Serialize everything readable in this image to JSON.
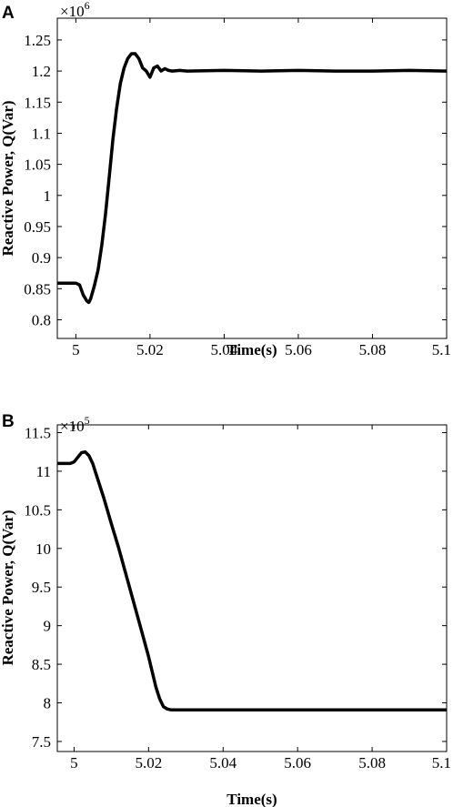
{
  "chart_data": [
    {
      "panel": "A",
      "type": "line",
      "xlabel": "Time(s)",
      "ylabel": "Reactive Power, Q(Var)",
      "multiplier": "×10",
      "multiplier_exp": "6",
      "xlim": [
        4.995,
        5.1
      ],
      "ylim": [
        0.77,
        1.285
      ],
      "xticks": [
        5,
        5.02,
        5.04,
        5.06,
        5.08,
        5.1
      ],
      "xtick_labels": [
        "5",
        "5.02",
        "5.04",
        "5.06",
        "5.08",
        "5.1"
      ],
      "yticks": [
        0.8,
        0.85,
        0.9,
        0.95,
        1,
        1.05,
        1.1,
        1.15,
        1.2,
        1.25
      ],
      "ytick_labels": [
        "0.8",
        "0.85",
        "0.9",
        "0.95",
        "1",
        "1.05",
        "1.1",
        "1.15",
        "1.2",
        "1.25"
      ],
      "grid": false,
      "series": [
        {
          "x": [
            4.995,
            5.0,
            5.001,
            5.002,
            5.003,
            5.0035,
            5.004,
            5.005,
            5.006,
            5.007,
            5.008,
            5.009,
            5.01,
            5.011,
            5.012,
            5.013,
            5.014,
            5.015,
            5.016,
            5.017,
            5.018,
            5.019,
            5.02,
            5.021,
            5.022,
            5.023,
            5.024,
            5.025,
            5.026,
            5.028,
            5.03,
            5.04,
            5.05,
            5.06,
            5.07,
            5.08,
            5.09,
            5.1
          ],
          "y": [
            0.859,
            0.859,
            0.856,
            0.84,
            0.83,
            0.828,
            0.834,
            0.855,
            0.88,
            0.92,
            0.97,
            1.03,
            1.09,
            1.14,
            1.18,
            1.205,
            1.22,
            1.228,
            1.228,
            1.22,
            1.205,
            1.2,
            1.19,
            1.205,
            1.208,
            1.2,
            1.204,
            1.201,
            1.2,
            1.201,
            1.2,
            1.201,
            1.2,
            1.201,
            1.2,
            1.2,
            1.201,
            1.2
          ]
        }
      ]
    },
    {
      "panel": "B",
      "type": "line",
      "xlabel": "Time(s)",
      "ylabel": "Reactive Power, Q(Var)",
      "multiplier": "×10",
      "multiplier_exp": "5",
      "xlim": [
        4.9955,
        5.1
      ],
      "ylim": [
        7.37,
        11.6
      ],
      "xticks": [
        5,
        5.02,
        5.04,
        5.06,
        5.08,
        5.1
      ],
      "xtick_labels": [
        "5",
        "5.02",
        "5.04",
        "5.06",
        "5.08",
        "5.1"
      ],
      "yticks": [
        7.5,
        8,
        8.5,
        9,
        9.5,
        10,
        10.5,
        11,
        11.5
      ],
      "ytick_labels": [
        "7.5",
        "8",
        "8.5",
        "9",
        "9.5",
        "10",
        "10.5",
        "11",
        "11.5"
      ],
      "grid": false,
      "series": [
        {
          "x": [
            4.9955,
            4.999,
            5.0,
            5.002,
            5.003,
            5.004,
            5.005,
            5.006,
            5.008,
            5.01,
            5.012,
            5.014,
            5.016,
            5.018,
            5.02,
            5.021,
            5.022,
            5.023,
            5.024,
            5.025,
            5.026,
            5.027,
            5.03,
            5.04,
            5.06,
            5.08,
            5.1
          ],
          "y": [
            11.1,
            11.1,
            11.12,
            11.24,
            11.25,
            11.2,
            11.1,
            10.95,
            10.65,
            10.32,
            10.0,
            9.65,
            9.3,
            8.95,
            8.6,
            8.4,
            8.2,
            8.05,
            7.95,
            7.92,
            7.91,
            7.91,
            7.91,
            7.91,
            7.91,
            7.91,
            7.91
          ]
        }
      ]
    }
  ]
}
